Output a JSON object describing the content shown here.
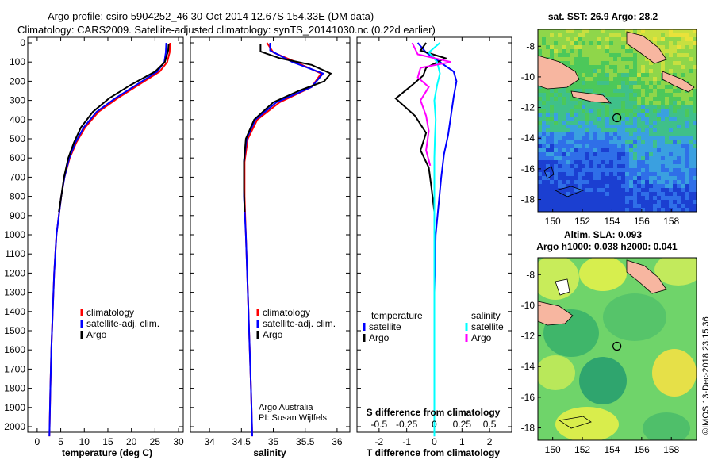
{
  "header": {
    "line1": "Argo profile: csiro 5904252_46 30-Oct-2014 12.67S 154.33E (DM data)",
    "line2": "Climatology: CARS2009. Satellite-adjusted climatology: synTS_20141030.nc (0.22d earlier)"
  },
  "colors": {
    "climatology": "#ff0000",
    "satellite": "#0000ff",
    "argo": "#000000",
    "sat_salinity": "#00ffff",
    "argo_salinity_diff": "#ff00ff"
  },
  "chart_data": [
    {
      "type": "line",
      "id": "temperature",
      "xlabel": "temperature (deg C)",
      "ylabel": "",
      "xlim": [
        -2,
        31
      ],
      "ylim": [
        2080,
        0
      ],
      "xticks": [
        "0",
        "5",
        "10",
        "15",
        "20",
        "25",
        "30"
      ],
      "xtick_values": [
        0,
        5,
        10,
        15,
        20,
        25,
        30
      ],
      "yticks": [
        "0",
        "100",
        "200",
        "300",
        "400",
        "500",
        "600",
        "700",
        "800",
        "900",
        "1000",
        "1100",
        "1200",
        "1300",
        "1400",
        "1500",
        "1600",
        "1700",
        "1800",
        "1900",
        "2000"
      ],
      "legend": [
        "climatology",
        "satellite-adj. clim.",
        "Argo"
      ],
      "legend_position": "lower-right",
      "series": [
        {
          "name": "climatology",
          "color": "#ff0000",
          "points": [
            [
              28.2,
              0
            ],
            [
              28.1,
              50
            ],
            [
              27.6,
              100
            ],
            [
              26,
              150
            ],
            [
              21.5,
              220
            ],
            [
              17,
              290
            ],
            [
              13,
              360
            ],
            [
              10.2,
              440
            ],
            [
              8.3,
              520
            ],
            [
              6.9,
              600
            ],
            [
              5.8,
              700
            ],
            [
              5.1,
              800
            ],
            [
              4.6,
              900
            ],
            [
              4.1,
              1000
            ],
            [
              3.6,
              1200
            ],
            [
              3.3,
              1400
            ],
            [
              3,
              1600
            ],
            [
              2.8,
              1800
            ],
            [
              2.6,
              2050
            ]
          ]
        },
        {
          "name": "satellite-adj. clim.",
          "color": "#0000ff",
          "points": [
            [
              27.4,
              0
            ],
            [
              27.3,
              50
            ],
            [
              27,
              100
            ],
            [
              25.5,
              150
            ],
            [
              21,
              220
            ],
            [
              16.5,
              290
            ],
            [
              12.6,
              360
            ],
            [
              9.9,
              440
            ],
            [
              8.1,
              520
            ],
            [
              6.8,
              600
            ],
            [
              5.8,
              700
            ],
            [
              5.1,
              800
            ],
            [
              4.6,
              900
            ],
            [
              4.1,
              1000
            ],
            [
              3.6,
              1200
            ],
            [
              3.3,
              1400
            ],
            [
              3,
              1600
            ],
            [
              2.8,
              1800
            ],
            [
              2.6,
              2050
            ]
          ]
        },
        {
          "name": "Argo",
          "color": "#000000",
          "points": [
            [
              27.9,
              5
            ],
            [
              27.8,
              40
            ],
            [
              27.1,
              100
            ],
            [
              25,
              150
            ],
            [
              19.8,
              220
            ],
            [
              15.2,
              290
            ],
            [
              11.8,
              360
            ],
            [
              9.3,
              440
            ],
            [
              7.8,
              520
            ],
            [
              6.6,
              600
            ],
            [
              5.7,
              700
            ],
            [
              5.1,
              800
            ],
            [
              4.6,
              880
            ]
          ]
        }
      ]
    },
    {
      "type": "line",
      "id": "salinity",
      "xlabel": "salinity",
      "xlim": [
        33.7,
        36.2
      ],
      "ylim": [
        2080,
        0
      ],
      "xticks": [
        "34",
        "34.5",
        "35",
        "35.5",
        "36"
      ],
      "xtick_values": [
        34,
        34.5,
        35,
        35.5,
        36
      ],
      "legend": [
        "climatology",
        "satellite-adj. clim.",
        "Argo"
      ],
      "legend_position": "lower-right",
      "annotation": [
        "Argo Australia",
        "PI: Susan Wijffels"
      ],
      "series": [
        {
          "name": "climatology",
          "color": "#ff0000",
          "points": [
            [
              34.9,
              0
            ],
            [
              35,
              50
            ],
            [
              35.35,
              100
            ],
            [
              35.75,
              160
            ],
            [
              35.6,
              230
            ],
            [
              35.1,
              310
            ],
            [
              34.75,
              400
            ],
            [
              34.6,
              500
            ],
            [
              34.55,
              620
            ],
            [
              34.55,
              800
            ],
            [
              34.57,
              1000
            ],
            [
              34.6,
              1300
            ],
            [
              34.63,
              1600
            ],
            [
              34.65,
              1800
            ],
            [
              34.67,
              2050
            ]
          ]
        },
        {
          "name": "satellite-adj. clim.",
          "color": "#0000ff",
          "points": [
            [
              34.95,
              0
            ],
            [
              34.95,
              40
            ],
            [
              35.3,
              100
            ],
            [
              35.78,
              160
            ],
            [
              35.6,
              230
            ],
            [
              35.05,
              310
            ],
            [
              34.72,
              400
            ],
            [
              34.58,
              500
            ],
            [
              34.54,
              620
            ],
            [
              34.54,
              800
            ],
            [
              34.57,
              1000
            ],
            [
              34.6,
              1300
            ],
            [
              34.63,
              1600
            ],
            [
              34.65,
              1800
            ],
            [
              34.67,
              2050
            ]
          ]
        },
        {
          "name": "Argo",
          "color": "#000000",
          "points": [
            [
              34.8,
              5
            ],
            [
              34.8,
              45
            ],
            [
              35.1,
              80
            ],
            [
              35.6,
              115
            ],
            [
              35.9,
              160
            ],
            [
              35.8,
              200
            ],
            [
              35.4,
              250
            ],
            [
              35,
              310
            ],
            [
              34.7,
              400
            ],
            [
              34.57,
              500
            ],
            [
              34.54,
              620
            ],
            [
              34.54,
              760
            ],
            [
              34.55,
              880
            ]
          ]
        }
      ]
    },
    {
      "type": "line",
      "id": "difference",
      "xlabel": "T difference from climatology",
      "xlabel_top": "S difference from climatology",
      "xlim": [
        -2.8,
        2.8
      ],
      "ylim": [
        2080,
        0
      ],
      "xticks": [
        "-2",
        "-1",
        "0",
        "1",
        "2"
      ],
      "xtick_values": [
        -2,
        -1,
        0,
        1,
        2
      ],
      "sticks": [
        "-0.5",
        "-0.25",
        "0",
        "0.25",
        "0.5"
      ],
      "stick_values": [
        -2,
        -1,
        0,
        1,
        2
      ],
      "legend_left_title": "temperature",
      "legend_left": [
        "satellite",
        "Argo"
      ],
      "legend_right_title": "salinity",
      "legend_right": [
        "satellite",
        "Argo"
      ],
      "series": [
        {
          "name": "T satellite",
          "color": "#0000ff",
          "points": [
            [
              -0.6,
              0
            ],
            [
              -0.3,
              50
            ],
            [
              0.2,
              100
            ],
            [
              0.7,
              150
            ],
            [
              0.8,
              200
            ],
            [
              0.7,
              280
            ],
            [
              0.6,
              380
            ],
            [
              0.5,
              480
            ],
            [
              0.35,
              580
            ],
            [
              0.25,
              700
            ],
            [
              0.15,
              850
            ],
            [
              0.05,
              1000
            ],
            [
              0,
              1300
            ],
            [
              0,
              2050
            ]
          ]
        },
        {
          "name": "T Argo",
          "color": "#000000",
          "points": [
            [
              -0.3,
              0
            ],
            [
              -0.5,
              40
            ],
            [
              0.4,
              80
            ],
            [
              -0.3,
              130
            ],
            [
              -0.4,
              170
            ],
            [
              -0.8,
              220
            ],
            [
              -1.4,
              290
            ],
            [
              -0.7,
              380
            ],
            [
              -0.3,
              470
            ],
            [
              -0.5,
              560
            ],
            [
              -0.2,
              650
            ],
            [
              -0.1,
              760
            ],
            [
              0,
              880
            ]
          ]
        },
        {
          "name": "S satellite",
          "color": "#00ffff",
          "points": [
            [
              0.2,
              0
            ],
            [
              -0.2,
              50
            ],
            [
              0.1,
              100
            ],
            [
              0.2,
              160
            ],
            [
              0.1,
              220
            ],
            [
              0,
              300
            ],
            [
              0.05,
              400
            ],
            [
              0.02,
              500
            ],
            [
              0,
              600
            ],
            [
              0,
              800
            ],
            [
              0,
              1000
            ],
            [
              0,
              1400
            ],
            [
              0,
              2050
            ]
          ]
        },
        {
          "name": "S Argo",
          "color": "#ff00ff",
          "points": [
            [
              -0.8,
              0
            ],
            [
              -0.6,
              60
            ],
            [
              0.6,
              100
            ],
            [
              -0.5,
              130
            ],
            [
              -0.6,
              180
            ],
            [
              -0.2,
              230
            ],
            [
              -0.5,
              300
            ],
            [
              -0.3,
              380
            ],
            [
              -0.2,
              460
            ],
            [
              -0.3,
              560
            ],
            [
              -0.15,
              640
            ]
          ]
        }
      ]
    }
  ],
  "maps": [
    {
      "title1": "sat. SST: 26.9 Argo: 28.2",
      "title2": "",
      "lon_ticks": [
        "150",
        "152",
        "154",
        "156",
        "158"
      ],
      "lat_ticks": [
        "-8",
        "-10",
        "-12",
        "-14",
        "-16",
        "-18"
      ],
      "marker": {
        "lon": 154.33,
        "lat": -12.67
      }
    },
    {
      "title1": "Altim. SLA: 0.093",
      "title2": "Argo h1000: 0.038 h2000: 0.041",
      "lon_ticks": [
        "150",
        "152",
        "154",
        "156",
        "158"
      ],
      "lat_ticks": [
        "-8",
        "-10",
        "-12",
        "-14",
        "-16",
        "-18"
      ],
      "marker": {
        "lon": 154.33,
        "lat": -12.67
      }
    }
  ],
  "watermark": "©IMOS 13-Dec-2018 23:15:36"
}
